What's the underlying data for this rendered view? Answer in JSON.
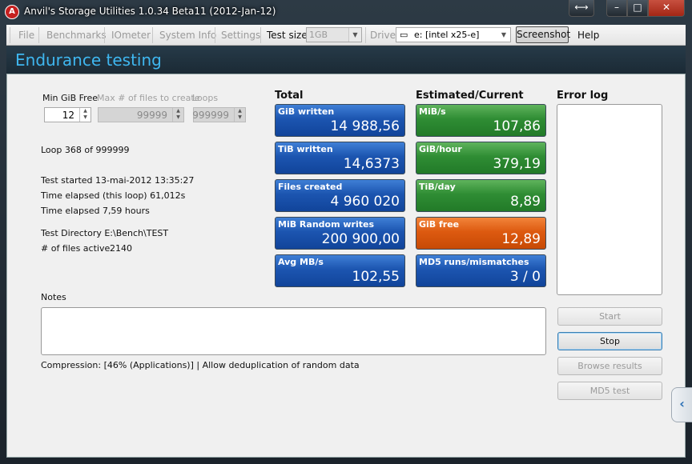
{
  "window": {
    "title": "Anvil's Storage Utilities 1.0.34 Beta11 (2012-Jan-12)",
    "controls": {
      "resize": "⟷",
      "minimize": "–",
      "maximize": "□",
      "close": "✕"
    }
  },
  "menu": {
    "items": [
      "File",
      "Benchmarks",
      "IOmeter",
      "System Info",
      "Settings"
    ],
    "test_size_label": "Test size",
    "test_size_value": "1GB",
    "drive_label": "Drive",
    "drive_value": "e: [intel x25-e]",
    "screenshot_label": "Screenshot",
    "help_label": "Help"
  },
  "header": {
    "title": "Endurance testing"
  },
  "params": {
    "min_gib_free_label": "Min GiB Free",
    "min_gib_free_value": "12",
    "max_files_label": "Max # of files to create",
    "max_files_value": "99999",
    "loops_label": "Loops",
    "loops_value": "999999"
  },
  "status": {
    "loop": "Loop 368 of 999999",
    "test_started": "Test started 13-mai-2012 13:35:27",
    "time_elapsed_loop": "Time elapsed (this loop) 61,012s",
    "time_elapsed": "Time elapsed 7,59 hours",
    "test_directory": "Test Directory E:\\Bench\\TEST",
    "files_active_label": "# of files active",
    "files_active_value": "2140"
  },
  "total": {
    "heading": "Total",
    "tiles": [
      {
        "label": "GiB written",
        "value": "14 988,56"
      },
      {
        "label": "TiB written",
        "value": "14,6373"
      },
      {
        "label": "Files created",
        "value": "4 960 020"
      },
      {
        "label": "MiB Random writes",
        "value": "200 900,00"
      },
      {
        "label": "Avg MB/s",
        "value": "102,55"
      }
    ]
  },
  "estimated": {
    "heading": "Estimated/Current",
    "tiles": [
      {
        "label": "MiB/s",
        "value": "107,86"
      },
      {
        "label": "GiB/hour",
        "value": "379,19"
      },
      {
        "label": "TiB/day",
        "value": "8,89"
      },
      {
        "label": "GiB free",
        "value": "12,89"
      },
      {
        "label": "MD5 runs/mismatches",
        "value": "3 / 0"
      }
    ]
  },
  "error_log": {
    "heading": "Error log",
    "content": ""
  },
  "notes": {
    "label": "Notes",
    "content": ""
  },
  "compression": "Compression: [46% (Applications)] | Allow deduplication of random data",
  "buttons": {
    "start": "Start",
    "stop": "Stop",
    "browse": "Browse results",
    "md5": "MD5 test"
  },
  "side_tab": "‹",
  "colors": {
    "accent": "#3fb7f0",
    "tile_blue": "#1c55b0",
    "tile_green": "#2f8d34",
    "tile_orange": "#dd5a10"
  }
}
